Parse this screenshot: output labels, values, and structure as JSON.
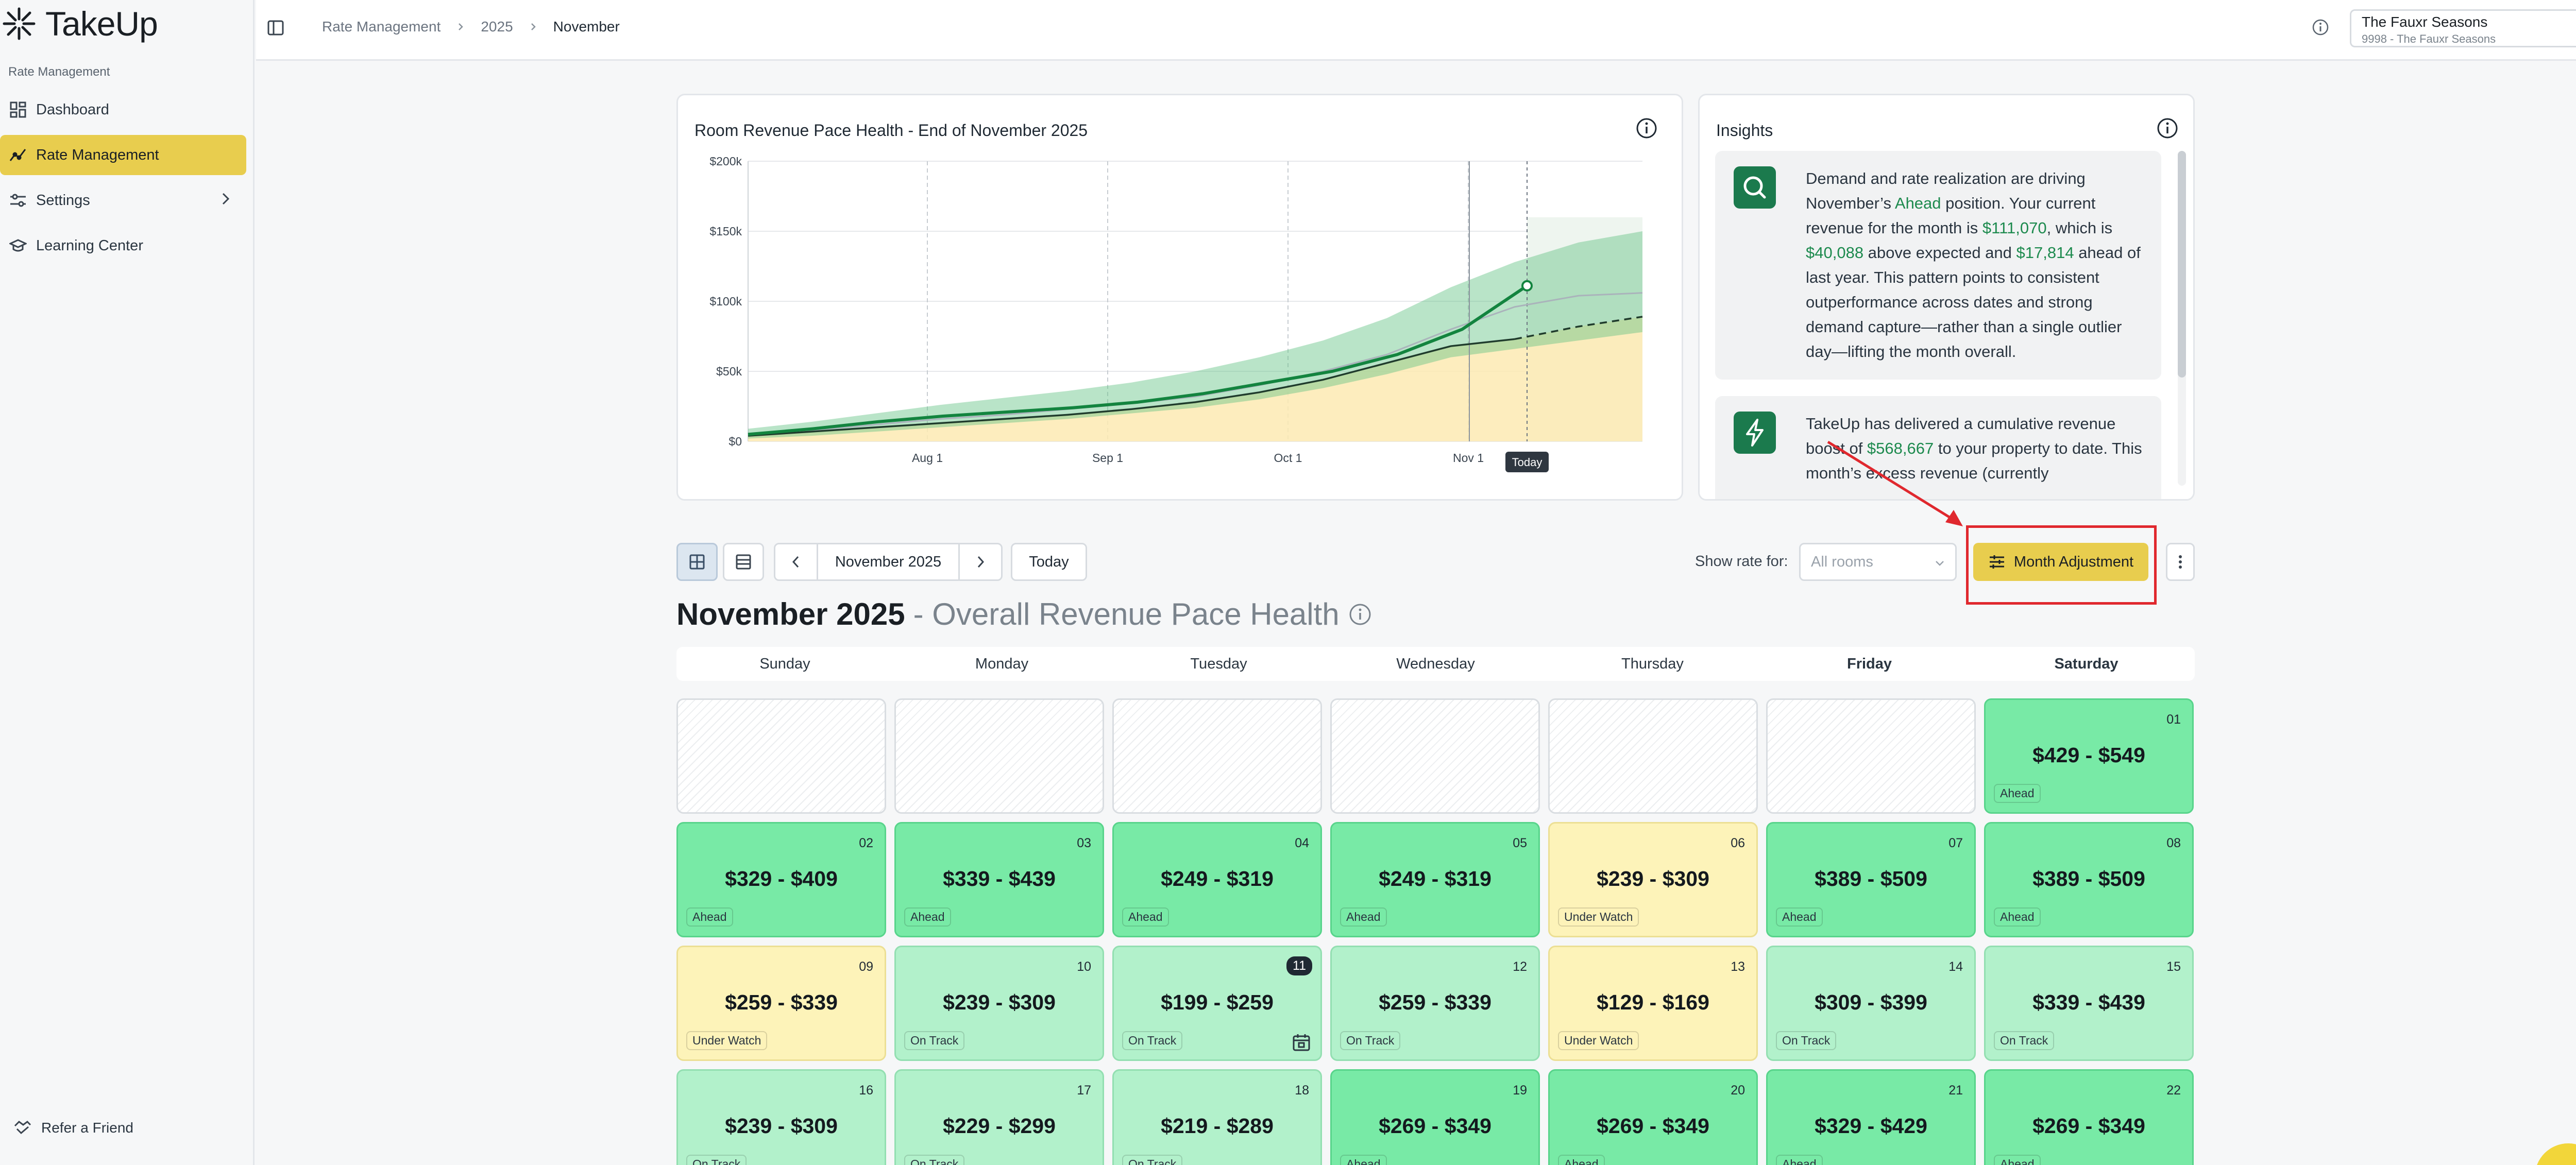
{
  "app": {
    "logo": "TakeUp"
  },
  "sidebar": {
    "section": "Rate Management",
    "items": [
      {
        "label": "Dashboard",
        "icon": "dashboard-icon"
      },
      {
        "label": "Rate Management",
        "icon": "chart-line-icon"
      },
      {
        "label": "Settings",
        "icon": "sliders-icon"
      },
      {
        "label": "Learning Center",
        "icon": "graduation-cap-icon"
      }
    ],
    "refer": "Refer a Friend"
  },
  "breadcrumb": [
    "Rate Management",
    "2025",
    "November"
  ],
  "property": {
    "name": "The Fauxr Seasons",
    "sub": "9998 - The Fauxr Seasons"
  },
  "chart_card": {
    "title": "Room Revenue Pace Health - End of November 2025",
    "chart_data": {
      "type": "line",
      "y_ticks": [
        "$0",
        "$50k",
        "$100k",
        "$150k",
        "$200k"
      ],
      "ylim": [
        0,
        200000
      ],
      "x_ticks": [
        "Aug 1",
        "Sep 1",
        "Oct 1",
        "Nov 1"
      ],
      "today_label": "Today",
      "series": [
        {
          "values": [
            5000,
            9000,
            14000,
            18000,
            21000,
            24000,
            28000,
            34000,
            42000,
            50000,
            62000,
            80000,
            111070
          ]
        },
        {
          "values": [
            4000,
            7000,
            10000,
            13000,
            16000,
            19000,
            23000,
            28000,
            35000,
            44000,
            56000,
            68000,
            73000,
            82000,
            89000
          ]
        },
        {
          "values": [
            5000,
            8000,
            12000,
            16000,
            19000,
            23000,
            27000,
            32000,
            40000,
            50000,
            62000,
            80000,
            96000,
            104000,
            106000
          ]
        }
      ]
    }
  },
  "insights": {
    "title": "Insights",
    "first": {
      "p1": "Demand and rate realization are driving November’s ",
      "ahead": "Ahead",
      "p2": " position. Your current revenue for the month is ",
      "rev": "$111,070",
      "p3": ", which is ",
      "above": "$40,088",
      "p4": " above expected and ",
      "ly": "$17,814",
      "p5": " ahead of last year. This pattern points to consistent outperformance across dates and strong demand capture—rather than a single outlier day—lifting the month overall."
    },
    "second": {
      "p1": "TakeUp has delivered a cumulative revenue boost of ",
      "boost": "$568,667",
      "p2": " to your property to date. This month’s excess revenue (currently"
    }
  },
  "toolbar": {
    "month": "November 2025",
    "today": "Today",
    "show_rate": "Show rate for:",
    "rooms_placeholder": "All rooms",
    "month_adjustment": "Month Adjustment"
  },
  "page": {
    "title": "November 2025",
    "subtitle": "- Overall Revenue Pace Health"
  },
  "calendar": {
    "weekdays": [
      "Sunday",
      "Monday",
      "Tuesday",
      "Wednesday",
      "Thursday",
      "Friday",
      "Saturday"
    ],
    "days": [
      {
        "day": "01",
        "price": "$429 - $549",
        "status": "Ahead"
      },
      {
        "day": "02",
        "price": "$329 - $409",
        "status": "Ahead"
      },
      {
        "day": "03",
        "price": "$339 - $439",
        "status": "Ahead"
      },
      {
        "day": "04",
        "price": "$249 - $319",
        "status": "Ahead"
      },
      {
        "day": "05",
        "price": "$249 - $319",
        "status": "Ahead"
      },
      {
        "day": "06",
        "price": "$239 - $309",
        "status": "Under Watch"
      },
      {
        "day": "07",
        "price": "$389 - $509",
        "status": "Ahead"
      },
      {
        "day": "08",
        "price": "$389 - $509",
        "status": "Ahead"
      },
      {
        "day": "09",
        "price": "$259 - $339",
        "status": "Under Watch"
      },
      {
        "day": "10",
        "price": "$239 - $309",
        "status": "On Track"
      },
      {
        "day": "11",
        "price": "$199 - $259",
        "status": "On Track"
      },
      {
        "day": "12",
        "price": "$259 - $339",
        "status": "On Track"
      },
      {
        "day": "13",
        "price": "$129 - $169",
        "status": "Under Watch"
      },
      {
        "day": "14",
        "price": "$309 - $399",
        "status": "On Track"
      },
      {
        "day": "15",
        "price": "$339 - $439",
        "status": "On Track"
      },
      {
        "day": "16",
        "price": "$239 - $309",
        "status": "On Track"
      },
      {
        "day": "17",
        "price": "$229 - $299",
        "status": "On Track"
      },
      {
        "day": "18",
        "price": "$219 - $289",
        "status": "On Track"
      },
      {
        "day": "19",
        "price": "$269 - $349",
        "status": "Ahead"
      },
      {
        "day": "20",
        "price": "$269 - $349",
        "status": "Ahead"
      },
      {
        "day": "21",
        "price": "$329 - $429",
        "status": "Ahead"
      },
      {
        "day": "22",
        "price": "$269 - $349",
        "status": "Ahead"
      }
    ]
  }
}
